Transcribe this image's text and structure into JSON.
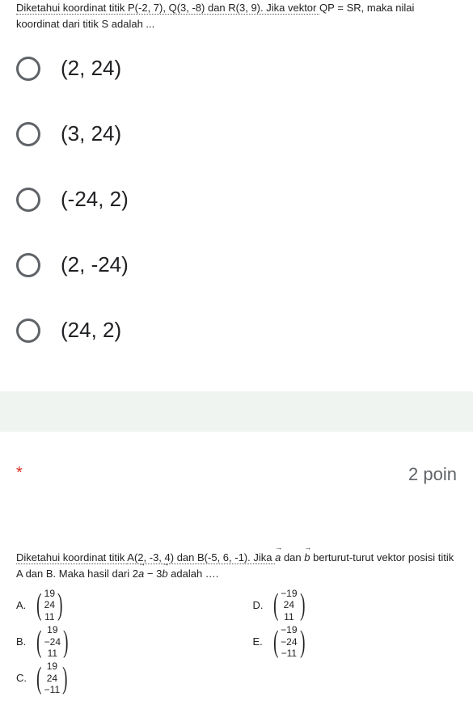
{
  "q1": {
    "text_pre": "Diketahui koordinat titik ",
    "pts": "P(-2, 7), Q(3, -8) dan R(3, 9). Jika vektor ",
    "qp": "QP",
    "eq": " = ",
    "sr": "SR",
    "text_post": ", maka nilai koordinat dari titik S adalah ...",
    "options": [
      "(2, 24)",
      "(3, 24)",
      "(-24, 2)",
      "(2, -24)",
      "(24, 2)"
    ]
  },
  "q2": {
    "asterisk": "*",
    "points": "2 poin",
    "text_pre": "Diketahui koordinat titik ",
    "ab": "A(2, -3, 4) dan B(-5, 6, -1). Jika ",
    "a": "a",
    "dan": " dan ",
    "b": "b",
    "text_mid": " berturut-turut vektor posisi titik A dan B. Maka hasil dari 2",
    "minus": " − 3",
    "text_post": " adalah ….",
    "answers": {
      "A": [
        "19",
        "24",
        "11"
      ],
      "B": [
        "19",
        "−24",
        "11"
      ],
      "C": [
        "19",
        "24",
        "−11"
      ],
      "D": [
        "−19",
        "24",
        "11"
      ],
      "E": [
        "−19",
        "−24",
        "−11"
      ]
    }
  },
  "colors": {
    "text": "#202124",
    "radio_border": "#5f6368",
    "required": "#d93025",
    "divider": "#f0f4f0"
  }
}
